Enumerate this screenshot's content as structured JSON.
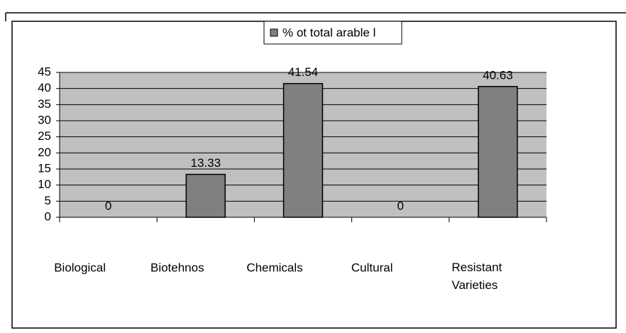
{
  "chart_data": {
    "type": "bar",
    "legend": "% ot total arable l",
    "categories": [
      "Biological",
      "Biotehnos",
      "Chemicals",
      "Cultural",
      "Resistant Varieties"
    ],
    "values": [
      0,
      13.33,
      41.54,
      0,
      40.63
    ],
    "color": "#808080",
    "plot_background": "#c0c0c0",
    "ylim": [
      0,
      45
    ],
    "yticks": [
      0,
      5,
      10,
      15,
      20,
      25,
      30,
      35,
      40,
      45
    ],
    "grid": true
  }
}
